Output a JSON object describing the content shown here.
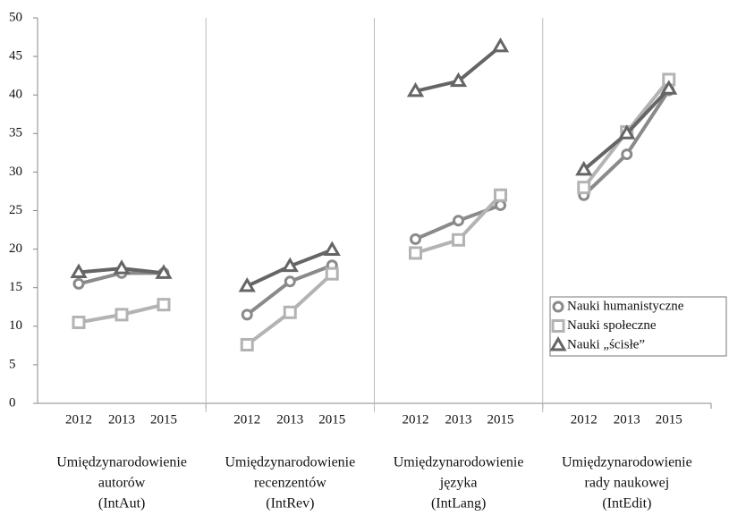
{
  "chart_data": {
    "type": "line",
    "years": [
      "2012",
      "2013",
      "2015"
    ],
    "groups": [
      [
        "Umiędzynarodowienie",
        "autorów",
        "(IntAut)"
      ],
      [
        "Umiędzynarodowienie",
        "recenzentów",
        "(IntRev)"
      ],
      [
        "Umiędzynarodowienie",
        "języka",
        "(IntLang)"
      ],
      [
        "Umiędzynarodowienie",
        "rady naukowej",
        "(IntEdit)"
      ]
    ],
    "series": [
      {
        "name": "Nauki humanistyczne",
        "color": "#8a8a8a",
        "marker": "circle",
        "values": [
          [
            15.5,
            16.9,
            16.9
          ],
          [
            11.5,
            15.8,
            17.9
          ],
          [
            21.3,
            23.7,
            25.7
          ],
          [
            27,
            32.3,
            40.6
          ]
        ]
      },
      {
        "name": "Nauki społeczne",
        "color": "#b3b3b3",
        "marker": "square",
        "values": [
          [
            10.5,
            11.5,
            12.8
          ],
          [
            7.6,
            11.8,
            16.8
          ],
          [
            19.5,
            21.2,
            27
          ],
          [
            28,
            35.2,
            42
          ]
        ]
      },
      {
        "name": "Nauki „ścisłe”",
        "color": "#656565",
        "marker": "triangle",
        "values": [
          [
            17,
            17.5,
            16.9
          ],
          [
            15.2,
            17.8,
            19.9
          ],
          [
            40.5,
            41.8,
            46.3
          ],
          [
            30.3,
            35,
            40.8
          ]
        ]
      }
    ],
    "ylim": [
      0,
      50
    ],
    "yticks": [
      0,
      5,
      10,
      15,
      20,
      25,
      30,
      35,
      40,
      45,
      50
    ]
  }
}
